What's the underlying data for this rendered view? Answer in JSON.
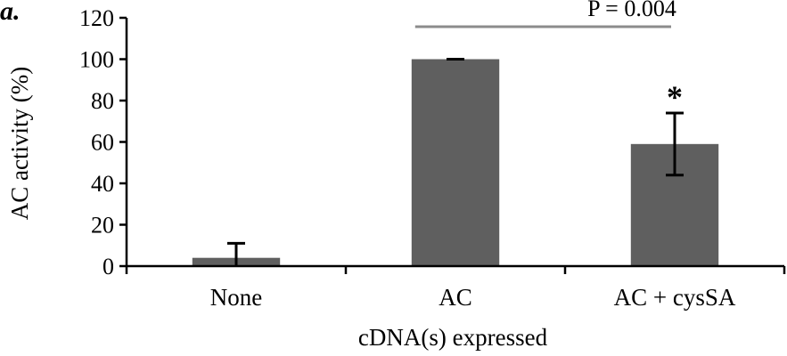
{
  "panel_label": "a.",
  "annotation": {
    "p_value": "P = 0.004",
    "significance_marker": "*"
  },
  "colors": {
    "bar": "#5f5f5f",
    "axis": "#000000",
    "comparison_line": "#8c8c8c",
    "error_bar": "#000000"
  },
  "chart_data": {
    "type": "bar",
    "categories": [
      "None",
      "AC",
      "AC + cysSA"
    ],
    "values": [
      4,
      100,
      59
    ],
    "errors": [
      7,
      0,
      15
    ],
    "xlabel": "cDNA(s) expressed",
    "ylabel": "AC activity (%)",
    "ylim": [
      0,
      120
    ],
    "yticks": [
      0,
      20,
      40,
      60,
      80,
      100,
      120
    ],
    "grid": false,
    "legend": "none",
    "comparison": {
      "from": "AC",
      "to": "AC + cysSA",
      "label": "P = 0.004"
    },
    "significant": [
      "AC + cysSA"
    ]
  }
}
